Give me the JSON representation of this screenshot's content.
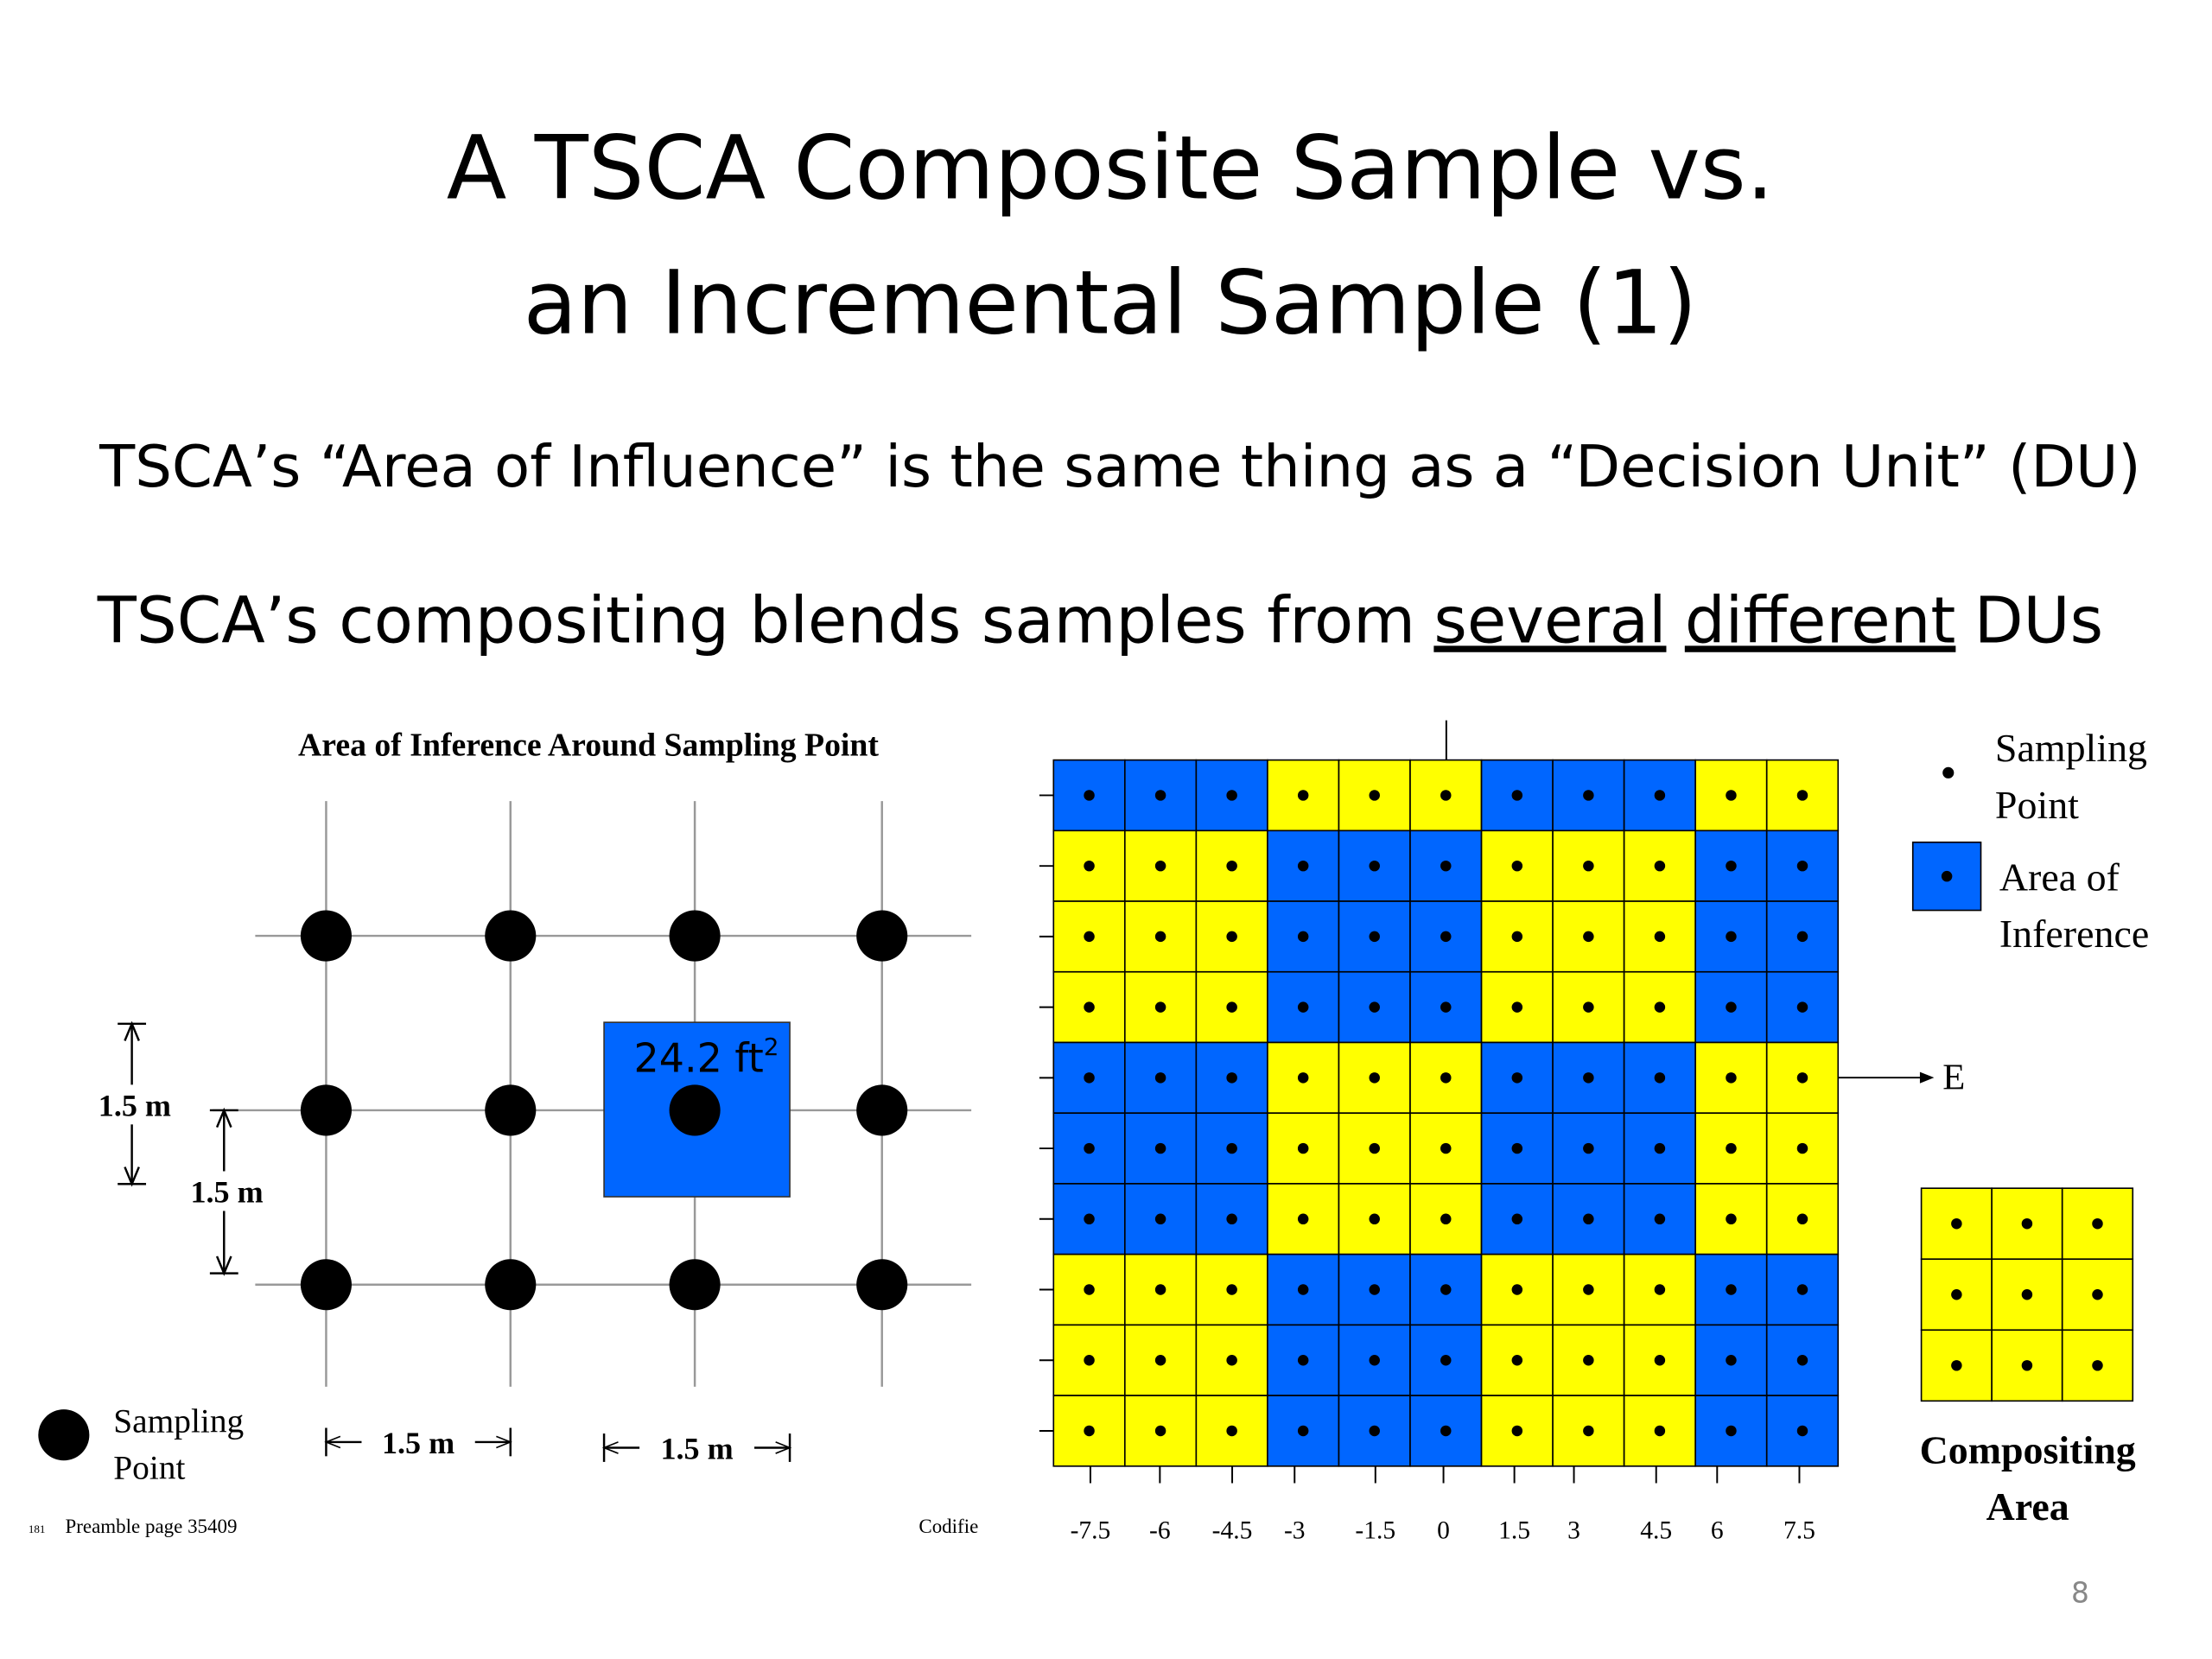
{
  "title": {
    "lines": [
      "A TSCA Composite Sample vs.",
      "an Incremental Sample (1)"
    ]
  },
  "statement_1": "TSCA’s “Area of Influence” is the same thing as a “Decision Unit” (DU)",
  "statement_2": {
    "before": "TSCA’s compositing blends samples from",
    "underlined_1": "several",
    "underlined_2": "different",
    "after": "DUs"
  },
  "left_figure": {
    "title": "Area of Inference Around Sampling Point",
    "area_label": {
      "text": "24.2 ft",
      "superscript": "2"
    },
    "dimension_labels": [
      "1.5 m",
      "1.5 m",
      "1.5 m",
      "1.5 m"
    ],
    "legend": [
      "Sampling",
      "Point"
    ],
    "footnote_number": "181",
    "footnote": "Preamble page 35409",
    "cropped_text": "Codifie"
  },
  "right_figure": {
    "x_labels": [
      "-7.5",
      "-6",
      "-4.5",
      "-3",
      "-1.5",
      "0",
      "1.5",
      "3",
      "4.5",
      "6",
      "7.5"
    ],
    "direction": "E",
    "legend": {
      "sampling_point": [
        "Sampling",
        "Point"
      ],
      "area_of_inference": [
        "Area of",
        "Inference"
      ]
    },
    "compositing_area": [
      "Compositing",
      "Area"
    ]
  },
  "page_number": "8"
}
